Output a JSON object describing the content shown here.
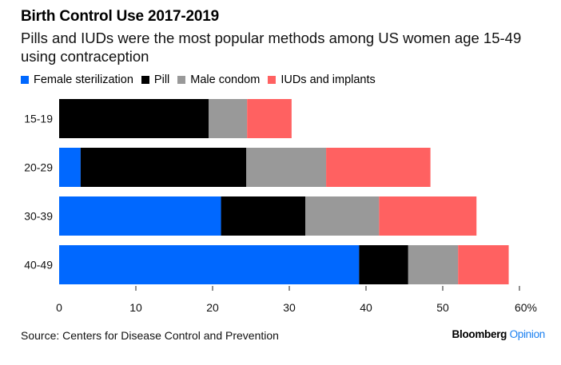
{
  "title": "Birth Control Use 2017-2019",
  "subtitle": "Pills and IUDs were the most popular methods among US women age 15-49 using contraception",
  "source": "Source: Centers for Disease Control and Prevention",
  "brand": {
    "name": "Bloomberg",
    "accent": "Opinion",
    "accent_color": "#1a7ff0"
  },
  "chart_data": {
    "type": "bar",
    "orientation": "horizontal",
    "stacked": true,
    "title": "Birth Control Use 2017-2019",
    "subtitle": "Pills and IUDs were the most popular methods among US women age 15-49 using contraception",
    "xlabel": "",
    "ylabel": "",
    "xlim": [
      0,
      60
    ],
    "x_ticks": [
      0,
      10,
      20,
      30,
      40,
      50,
      60
    ],
    "x_tick_labels": [
      "0",
      "10",
      "20",
      "30",
      "40",
      "50",
      "60%"
    ],
    "grid": false,
    "legend_position": "top-left",
    "categories": [
      "15-19",
      "20-29",
      "30-39",
      "40-49"
    ],
    "series": [
      {
        "name": "Female sterilization",
        "color": "#0068ff",
        "values": [
          0,
          2.8,
          21.1,
          39.1
        ]
      },
      {
        "name": "Pill",
        "color": "#000000",
        "values": [
          19.5,
          21.6,
          11.0,
          6.4
        ]
      },
      {
        "name": "Male condom",
        "color": "#999999",
        "values": [
          5.0,
          10.4,
          9.6,
          6.5
        ]
      },
      {
        "name": "IUDs and implants",
        "color": "#ff6161",
        "values": [
          5.8,
          13.6,
          12.7,
          6.6
        ]
      }
    ]
  }
}
